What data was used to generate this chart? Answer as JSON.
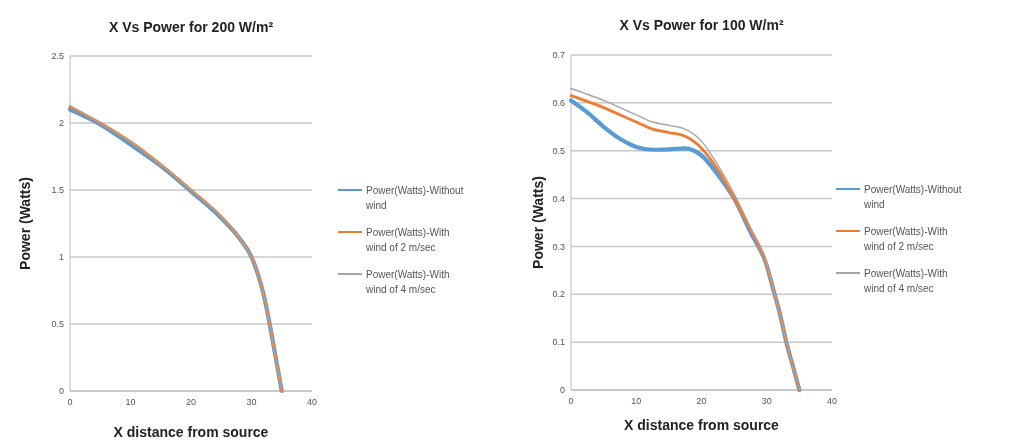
{
  "chart_data": [
    {
      "type": "line",
      "title": "X Vs Power for 200 W/m²",
      "xlabel": "X distance from source",
      "ylabel": "Power (Watts)",
      "xlim": [
        0,
        40
      ],
      "xticks": [
        0,
        10,
        20,
        30,
        40
      ],
      "ylim": [
        0,
        2.5
      ],
      "yticks": [
        0,
        0.5,
        1,
        1.5,
        2,
        2.5
      ],
      "grid": "y",
      "legend": "right",
      "marker": "none",
      "line_style": "solid",
      "x": [
        0,
        5,
        10,
        15,
        20,
        25,
        28,
        30,
        31,
        32,
        33,
        34,
        35
      ],
      "series": [
        {
          "name": "Power(Watts)-Without wind",
          "color": "#5b9bd5",
          "values": [
            2.1,
            1.99,
            1.84,
            1.68,
            1.49,
            1.29,
            1.14,
            1.0,
            0.88,
            0.72,
            0.5,
            0.25,
            0
          ]
        },
        {
          "name": "Power(Watts)-With wind of 2 m/sec",
          "color": "#ed7d31",
          "values": [
            2.12,
            2.0,
            1.86,
            1.69,
            1.5,
            1.3,
            1.14,
            1.0,
            0.88,
            0.72,
            0.5,
            0.25,
            0
          ]
        },
        {
          "name": "Power(Watts)-With wind of 4 m/sec",
          "color": "#a5a5a5",
          "values": [
            2.13,
            2.0,
            1.86,
            1.69,
            1.5,
            1.3,
            1.14,
            1.0,
            0.88,
            0.72,
            0.5,
            0.25,
            0
          ]
        }
      ]
    },
    {
      "type": "line",
      "title": "X Vs Power for 100 W/m²",
      "xlabel": "X distance from source",
      "ylabel": "Power (Watts)",
      "xlim": [
        0,
        40
      ],
      "xticks": [
        0,
        10,
        20,
        30,
        40
      ],
      "ylim": [
        0,
        0.7
      ],
      "yticks": [
        0,
        0.1,
        0.2,
        0.3,
        0.4,
        0.5,
        0.6,
        0.7
      ],
      "grid": "y",
      "legend": "right",
      "marker": "none",
      "line_style": "solid",
      "x": [
        0,
        2.5,
        5,
        7.5,
        10,
        12.5,
        15,
        17.5,
        20,
        22.5,
        25,
        27.5,
        30,
        31,
        32,
        33,
        34,
        35
      ],
      "series": [
        {
          "name": "Power(Watts)-Without wind",
          "color": "#5b9bd5",
          "values": [
            0.605,
            0.58,
            0.55,
            0.525,
            0.508,
            0.502,
            0.503,
            0.505,
            0.49,
            0.45,
            0.4,
            0.33,
            0.26,
            0.21,
            0.16,
            0.1,
            0.05,
            0
          ]
        },
        {
          "name": "Power(Watts)-With wind of 2 m/sec",
          "color": "#ed7d31",
          "values": [
            0.615,
            0.603,
            0.59,
            0.575,
            0.56,
            0.545,
            0.538,
            0.53,
            0.505,
            0.46,
            0.4,
            0.335,
            0.26,
            0.21,
            0.16,
            0.1,
            0.05,
            0
          ]
        },
        {
          "name": "Power(Watts)-With wind of 4 m/sec",
          "color": "#a5a5a5",
          "values": [
            0.63,
            0.618,
            0.605,
            0.59,
            0.575,
            0.56,
            0.553,
            0.545,
            0.52,
            0.47,
            0.41,
            0.34,
            0.265,
            0.21,
            0.16,
            0.1,
            0.05,
            0
          ]
        }
      ]
    }
  ]
}
